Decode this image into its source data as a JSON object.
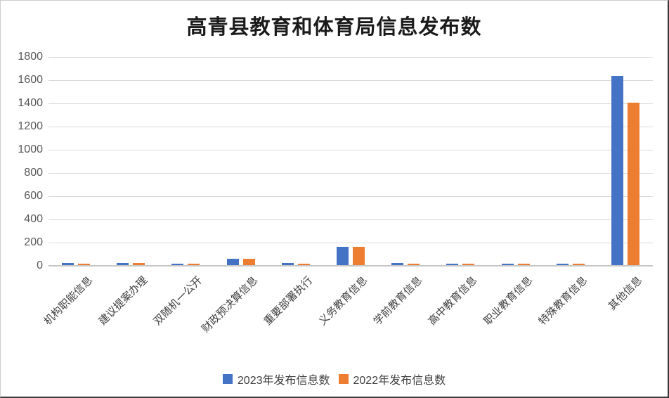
{
  "title": "高青县教育和体育局信息发布数",
  "colors": {
    "grid": "#d9d9d9",
    "baseline": "#c6c6c6",
    "axis_text": "#595959",
    "category_text": "#404040",
    "title_text": "#1a1a1a",
    "series1": "#4472C4",
    "series2": "#ED7D31"
  },
  "chart_data": {
    "type": "bar",
    "title": "高青县教育和体育局信息发布数",
    "categories": [
      "机构职能信息",
      "建议提案办理",
      "双随机一公开",
      "财政预决算信息",
      "重要部署执行",
      "义务教育信息",
      "学前教育信息",
      "高中教育信息",
      "职业教育信息",
      "特殊教育信息",
      "其他信息"
    ],
    "series": [
      {
        "name": "2023年发布信息数",
        "color": "#4472C4",
        "values": [
          20,
          20,
          12,
          55,
          18,
          160,
          20,
          15,
          12,
          12,
          1630
        ]
      },
      {
        "name": "2022年发布信息数",
        "color": "#ED7D31",
        "values": [
          10,
          18,
          10,
          52,
          14,
          158,
          11,
          13,
          12,
          12,
          1400
        ]
      }
    ],
    "xlabel": "",
    "ylabel": "",
    "ylim": [
      0,
      1800
    ],
    "ytick_step": 200,
    "yticks": [
      0,
      200,
      400,
      600,
      800,
      1000,
      1200,
      1400,
      1600,
      1800
    ],
    "grid": true,
    "legend_position": "bottom"
  }
}
